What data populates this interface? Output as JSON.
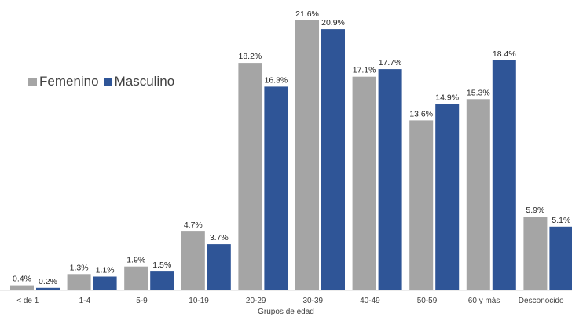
{
  "chart_data": {
    "type": "bar",
    "categories": [
      "< de 1",
      "1-4",
      "5-9",
      "10-19",
      "20-29",
      "30-39",
      "40-49",
      "50-59",
      "60 y más",
      "Desconocido"
    ],
    "series": [
      {
        "name": "Femenino",
        "color": "#a5a5a5",
        "values": [
          0.4,
          1.3,
          1.9,
          4.7,
          18.2,
          21.6,
          17.1,
          13.6,
          15.3,
          5.9
        ],
        "labels": [
          "0.4%",
          "1.3%",
          "1.9%",
          "4.7%",
          "18.2%",
          "21.6%",
          "17.1%",
          "13.6%",
          "15.3%",
          "5.9%"
        ]
      },
      {
        "name": "Masculino",
        "color": "#2f5597",
        "values": [
          0.2,
          1.1,
          1.5,
          3.7,
          16.3,
          20.9,
          17.7,
          14.9,
          18.4,
          5.1
        ],
        "labels": [
          "0.2%",
          "1.1%",
          "1.5%",
          "3.7%",
          "16.3%",
          "20.9%",
          "17.7%",
          "14.9%",
          "18.4%",
          "5.1%"
        ]
      }
    ],
    "title": "",
    "xlabel": "Grupos de edad",
    "ylabel": "",
    "ylim": [
      0,
      21.6
    ],
    "grid": false,
    "legend_position": "top-left"
  }
}
